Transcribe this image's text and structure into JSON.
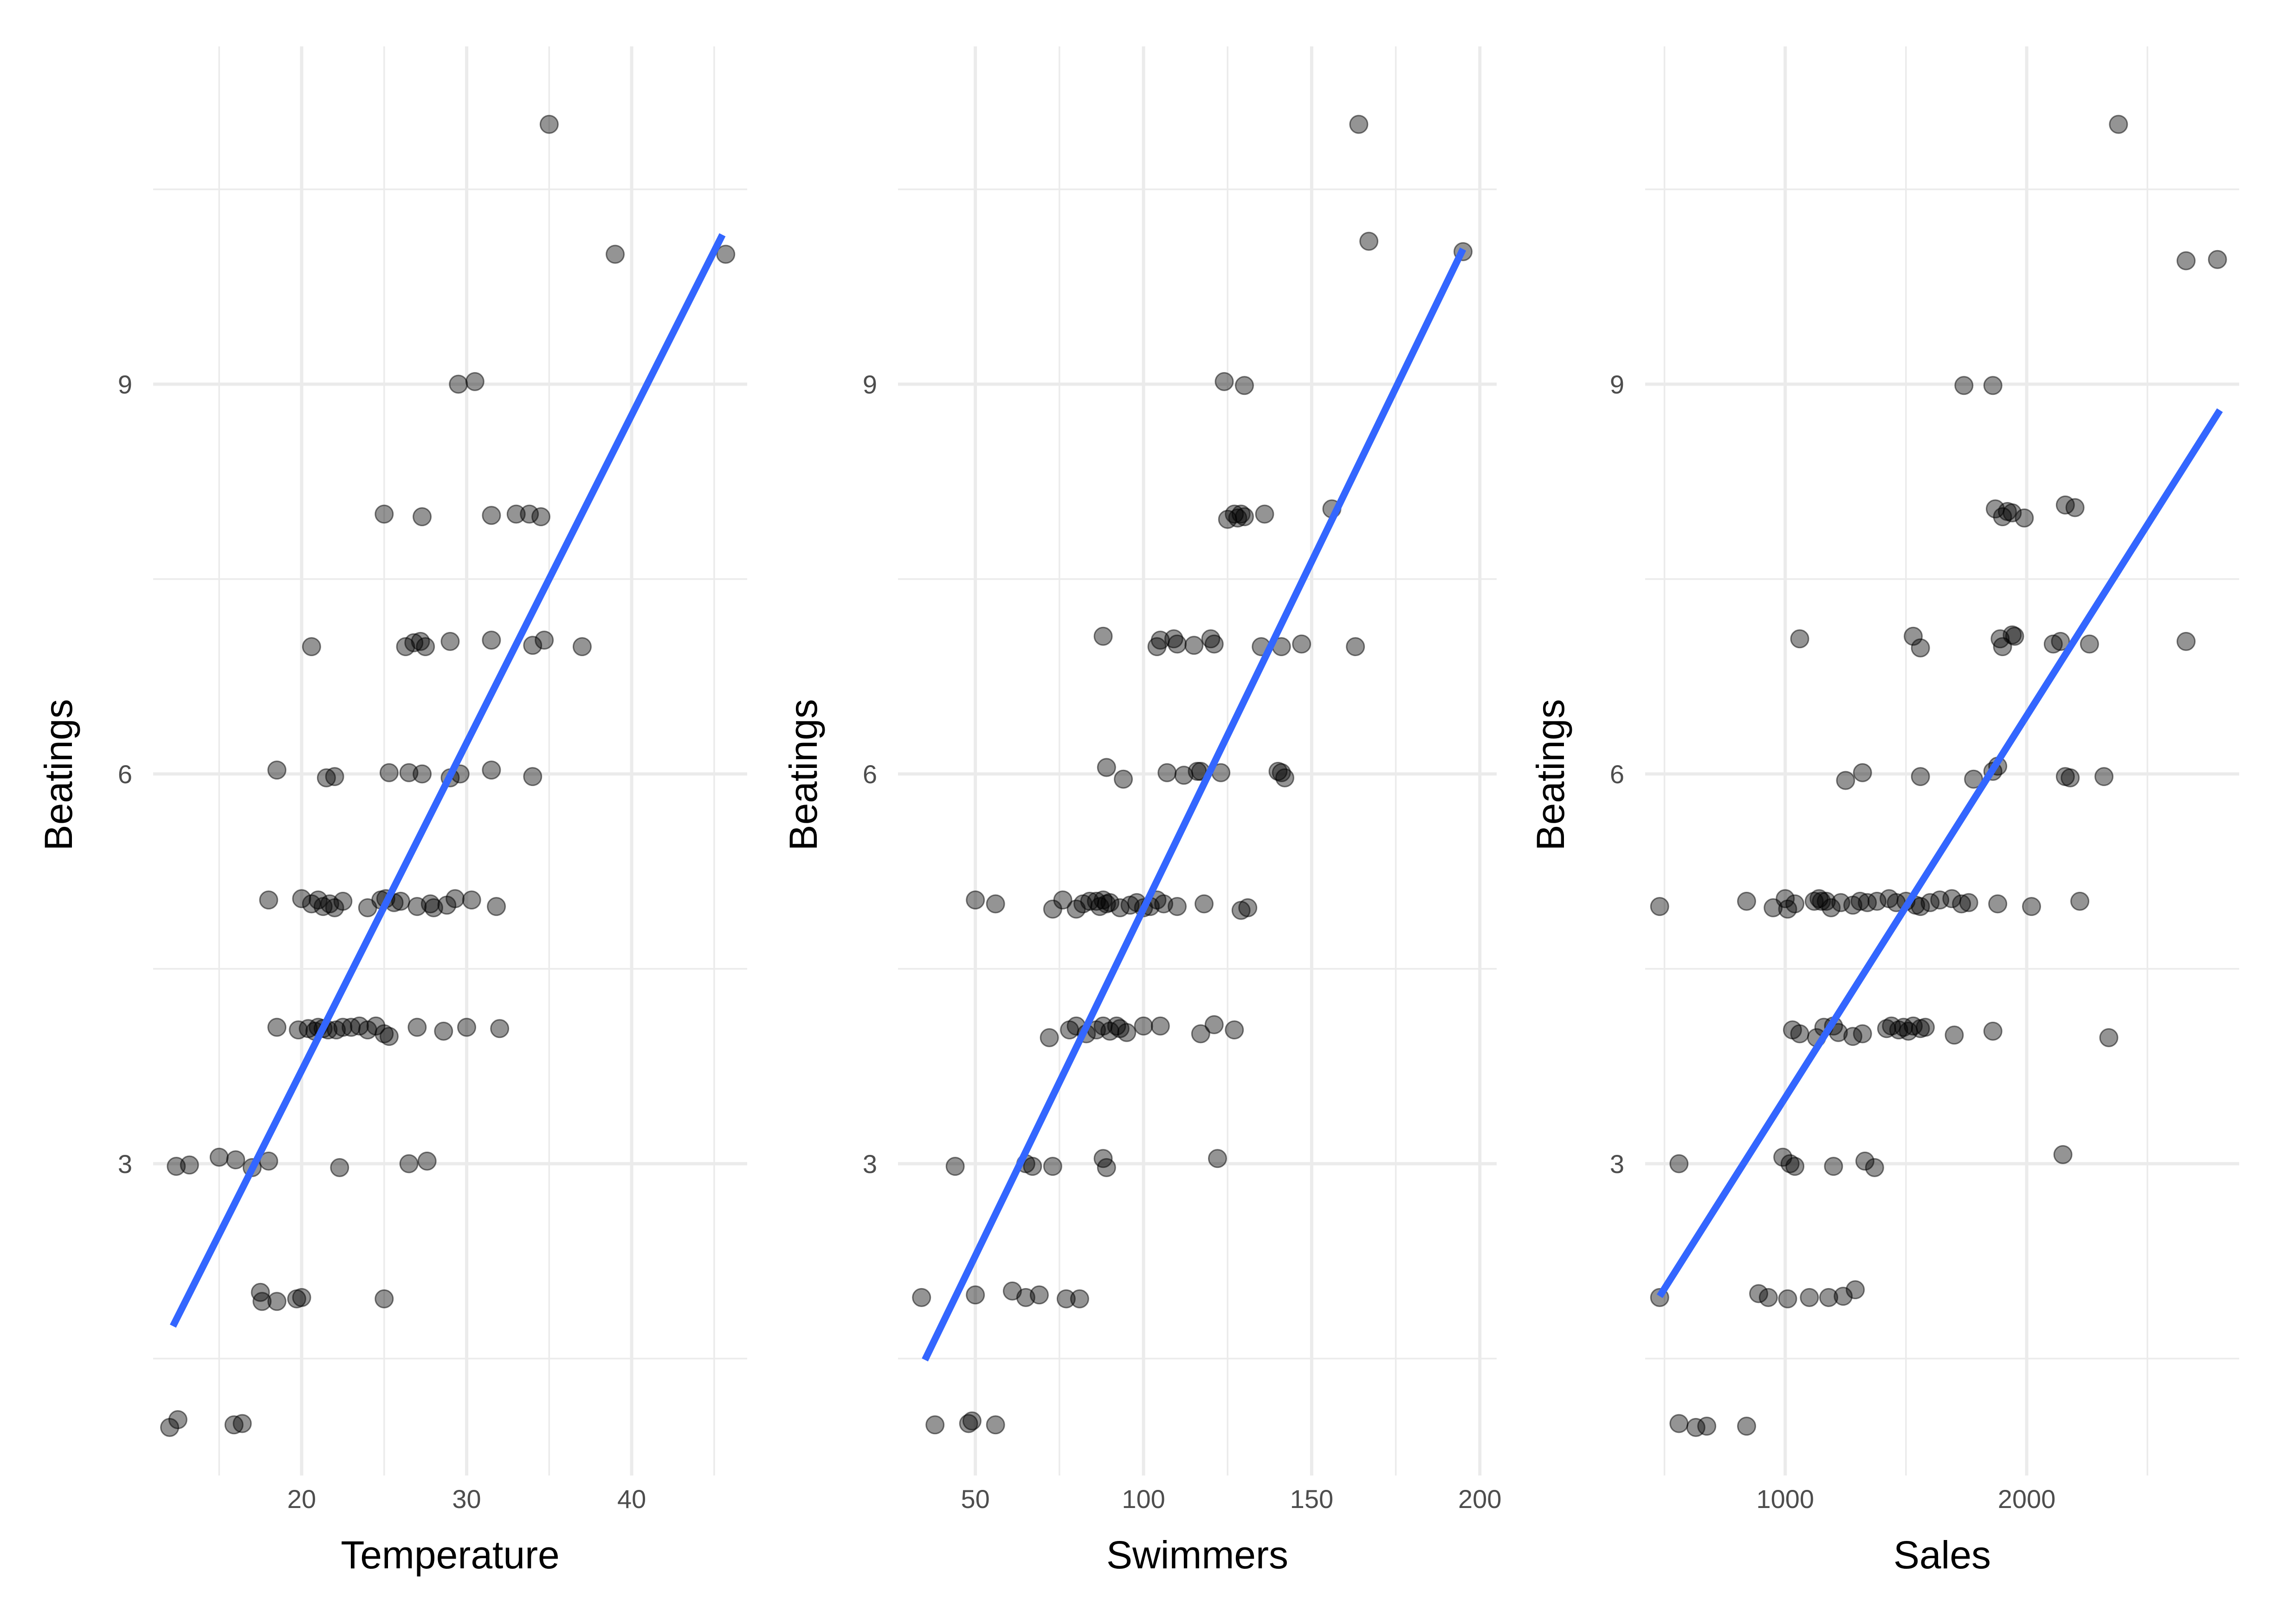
{
  "chart_data": [
    {
      "type": "scatter",
      "title": "",
      "xlabel": "Temperature",
      "ylabel": "Beatings",
      "xlim": [
        11,
        47
      ],
      "ylim": [
        0.6,
        11.6
      ],
      "xticks": [
        20,
        30,
        40
      ],
      "xticks_minor": [
        15,
        25,
        35,
        45
      ],
      "yticks": [
        3,
        6,
        9
      ],
      "yticks_minor": [
        1.5,
        4.5,
        7.5,
        10.5
      ],
      "fit_line": {
        "x": [
          12.2,
          45.5
        ],
        "y": [
          1.75,
          10.15
        ],
        "color": "#3366FF"
      },
      "x": [
        12,
        12.5,
        13.2,
        12.4,
        15,
        16,
        17,
        18,
        22.3,
        26.5,
        27.6,
        17.5,
        17.6,
        18.5,
        19.7,
        20,
        25,
        15.9,
        16.4,
        18.5,
        19.8,
        20.4,
        20.8,
        21,
        21.3,
        21.6,
        22.1,
        22.5,
        23,
        23.5,
        24,
        24.5,
        25,
        25.3,
        27,
        28.6,
        30,
        32,
        18,
        20,
        20.6,
        21,
        21.3,
        21.7,
        22,
        22.5,
        24,
        24.8,
        25.1,
        25.6,
        26,
        27,
        27.8,
        28,
        28.8,
        29.3,
        30.3,
        31.8,
        18.5,
        21.5,
        22,
        25.3,
        26.5,
        27.3,
        29,
        29.6,
        31.5,
        34,
        20.6,
        26.3,
        26.8,
        27.2,
        27.5,
        29,
        31.5,
        34,
        34.7,
        37,
        25,
        27.3,
        31.5,
        33,
        33.8,
        34.5,
        29.5,
        30.5,
        39,
        45.7,
        35
      ],
      "y": [
        0.97,
        1.03,
        2.99,
        2.98,
        3.05,
        3.03,
        2.97,
        3.02,
        2.97,
        3.0,
        3.02,
        2.01,
        1.94,
        1.94,
        1.96,
        1.97,
        1.96,
        0.99,
        1.0,
        4.05,
        4.03,
        4.04,
        4.02,
        4.05,
        4.04,
        4.03,
        4.03,
        4.05,
        4.05,
        4.06,
        4.03,
        4.06,
        4.0,
        3.98,
        4.05,
        4.02,
        4.05,
        4.04,
        5.03,
        5.04,
        5.0,
        5.03,
        4.98,
        5.0,
        4.97,
        5.02,
        4.97,
        5.03,
        5.04,
        5.01,
        5.02,
        4.98,
        5.0,
        4.97,
        4.99,
        5.04,
        5.03,
        4.98,
        6.03,
        5.97,
        5.98,
        6.01,
        6.01,
        6.0,
        5.97,
        6.0,
        6.03,
        5.98,
        6.98,
        6.98,
        7.01,
        7.02,
        6.98,
        7.02,
        7.03,
        6.99,
        7.03,
        6.98,
        8.0,
        7.98,
        7.99,
        8.0,
        8.0,
        7.98,
        9.0,
        9.02,
        10.0,
        10.0,
        11.0
      ]
    },
    {
      "type": "scatter",
      "title": "",
      "xlabel": "Swimmers",
      "ylabel": "Beatings",
      "xlim": [
        27,
        205
      ],
      "ylim": [
        0.6,
        11.6
      ],
      "xticks": [
        50,
        100,
        150,
        200
      ],
      "xticks_minor": [
        75,
        125,
        175
      ],
      "yticks": [
        3,
        6,
        9
      ],
      "yticks_minor": [
        1.5,
        4.5,
        7.5,
        10.5
      ],
      "fit_line": {
        "x": [
          35,
          195
        ],
        "y": [
          1.49,
          10.04
        ],
        "color": "#3366FF"
      },
      "x": [
        38,
        48,
        49,
        56,
        34,
        50,
        61,
        65,
        69,
        77,
        81,
        44,
        65,
        67,
        73,
        88,
        89,
        122,
        72,
        78,
        80,
        83,
        86,
        88,
        90,
        92,
        93,
        95,
        100,
        105,
        117,
        121,
        127,
        50,
        56,
        73,
        76,
        80,
        82,
        84,
        86,
        87,
        88,
        89,
        90,
        93,
        96,
        98,
        100,
        102,
        104,
        106,
        110,
        118,
        129,
        131,
        89,
        94,
        107,
        112,
        116,
        117,
        123,
        140,
        141,
        142,
        88,
        104,
        105,
        109,
        110,
        115,
        120,
        121,
        135,
        141,
        147,
        163,
        125,
        127,
        128,
        129,
        130,
        136,
        156,
        124,
        130,
        167,
        195,
        164
      ],
      "y": [
        0.99,
        1.0,
        1.02,
        0.99,
        1.97,
        1.99,
        2.02,
        1.97,
        1.99,
        1.96,
        1.96,
        2.98,
        3.0,
        2.98,
        2.98,
        3.04,
        2.97,
        3.04,
        3.97,
        4.03,
        4.06,
        4.0,
        4.03,
        4.06,
        4.02,
        4.06,
        4.04,
        4.01,
        4.06,
        4.06,
        4.0,
        4.07,
        4.03,
        5.03,
        5.0,
        4.96,
        5.03,
        4.96,
        5.0,
        5.02,
        5.02,
        4.98,
        5.03,
        5.0,
        5.01,
        4.97,
        4.99,
        5.01,
        4.97,
        4.98,
        5.03,
        5.0,
        4.98,
        5.0,
        4.95,
        4.97,
        6.05,
        5.96,
        6.01,
        5.99,
        6.02,
        6.02,
        6.01,
        6.02,
        6.01,
        5.97,
        7.06,
        6.98,
        7.03,
        7.04,
        7.0,
        6.99,
        7.04,
        7.0,
        6.98,
        6.98,
        7.0,
        6.98,
        7.96,
        8.0,
        7.97,
        8.0,
        7.98,
        8.0,
        8.04,
        9.02,
        8.99,
        10.1,
        10.02,
        11.0
      ]
    },
    {
      "type": "scatter",
      "title": "",
      "xlabel": "Sales",
      "ylabel": "Beatings",
      "xlim": [
        420,
        2880
      ],
      "ylim": [
        0.6,
        11.6
      ],
      "xticks": [
        1000,
        2000
      ],
      "xticks_minor": [
        500,
        1500,
        2500
      ],
      "yticks": [
        3,
        6,
        9
      ],
      "yticks_minor": [
        1.5,
        4.5,
        7.5,
        10.5
      ],
      "fit_line": {
        "x": [
          480,
          2800
        ],
        "y": [
          1.98,
          8.8
        ],
        "color": "#3366FF"
      },
      "x": [
        560,
        630,
        675,
        840,
        480,
        890,
        930,
        1010,
        1100,
        1180,
        1240,
        1290,
        560,
        990,
        1020,
        1040,
        1200,
        1330,
        1370,
        2150,
        1030,
        1060,
        1130,
        1160,
        1200,
        1220,
        1280,
        1320,
        1420,
        1440,
        1470,
        1490,
        1510,
        1530,
        1560,
        1580,
        1700,
        1860,
        2340,
        480,
        840,
        950,
        1000,
        1010,
        1040,
        1120,
        1140,
        1150,
        1170,
        1190,
        1230,
        1280,
        1310,
        1340,
        1380,
        1430,
        1460,
        1500,
        1540,
        1560,
        1600,
        1640,
        1690,
        1730,
        1760,
        1880,
        2020,
        2220,
        1250,
        1320,
        1560,
        1780,
        1860,
        1880,
        2160,
        2180,
        2320,
        1060,
        1530,
        1560,
        1890,
        1900,
        1940,
        1950,
        2110,
        2140,
        2260,
        2660,
        1870,
        1900,
        1920,
        1940,
        1990,
        2160,
        2200,
        1740,
        1860,
        2660,
        2790,
        2380
      ],
      "y": [
        1.0,
        0.97,
        0.98,
        0.98,
        1.97,
        2.0,
        1.97,
        1.96,
        1.97,
        1.97,
        1.98,
        2.03,
        3.0,
        3.05,
        3.0,
        2.98,
        2.98,
        3.02,
        2.97,
        3.07,
        4.03,
        4.0,
        3.97,
        4.05,
        4.06,
        4.01,
        3.98,
        4.0,
        4.04,
        4.06,
        4.03,
        4.05,
        4.02,
        4.06,
        4.04,
        4.05,
        3.99,
        4.02,
        3.97,
        4.98,
        5.02,
        4.97,
        5.04,
        4.96,
        5.0,
        5.02,
        5.04,
        5.02,
        5.02,
        4.97,
        5.01,
        4.99,
        5.02,
        5.01,
        5.02,
        5.04,
        5.01,
        5.02,
        4.99,
        4.98,
        5.01,
        5.03,
        5.04,
        5.0,
        5.01,
        5.0,
        4.98,
        5.02,
        5.95,
        6.01,
        5.98,
        5.96,
        6.02,
        6.06,
        5.98,
        5.97,
        5.98,
        7.04,
        7.06,
        6.97,
        7.04,
        6.98,
        7.07,
        7.06,
        7.0,
        7.02,
        7.0,
        7.02,
        8.04,
        7.98,
        8.02,
        8.01,
        7.97,
        8.07,
        8.05,
        8.99,
        8.99,
        9.95,
        9.96,
        11.0
      ]
    }
  ]
}
